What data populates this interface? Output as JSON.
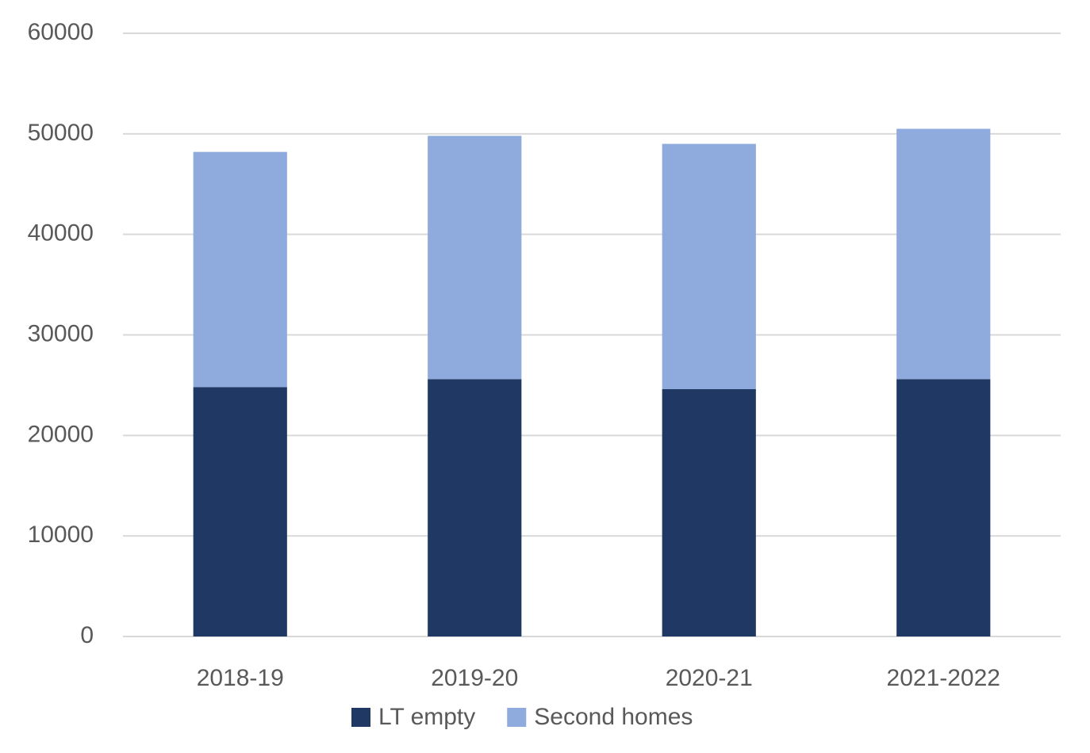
{
  "chart_data": {
    "type": "stacked_bar",
    "categories": [
      "2018-19",
      "2019-20",
      "2020-21",
      "2021-2022"
    ],
    "series": [
      {
        "name": "LT empty",
        "color": "#203864",
        "values": [
          24800,
          25600,
          24600,
          25600
        ]
      },
      {
        "name": "Second homes",
        "color": "#8faadc",
        "values": [
          23400,
          24200,
          24400,
          24900
        ]
      }
    ],
    "ylim": [
      0,
      60000
    ],
    "yticks": [
      0,
      10000,
      20000,
      30000,
      40000,
      50000,
      60000
    ],
    "grid": true,
    "legend": "bottom"
  }
}
